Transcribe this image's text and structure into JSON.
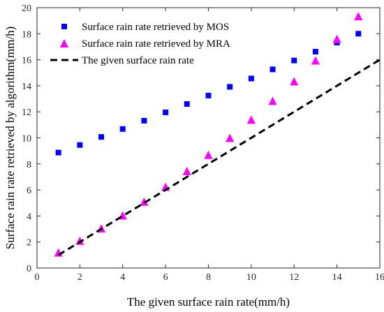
{
  "chart_data": {
    "type": "scatter",
    "xlabel": "The given surface rain rate(mm/h)",
    "ylabel": "Surface rain rate retrieved by algorithm(mm/h)",
    "xlim": [
      0,
      16
    ],
    "ylim": [
      0,
      20
    ],
    "xticks": [
      0,
      2,
      4,
      6,
      8,
      10,
      12,
      14,
      16
    ],
    "yticks": [
      0,
      2,
      4,
      6,
      8,
      10,
      12,
      14,
      16,
      18,
      20
    ],
    "grid": false,
    "legend_position": "top-left",
    "series": [
      {
        "name": "Surface rain rate retrieved by MOS",
        "marker": "square",
        "color": "#0000FF",
        "x": [
          1,
          2,
          3,
          4,
          5,
          6,
          7,
          8,
          9,
          10,
          11,
          12,
          13,
          14,
          15
        ],
        "y": [
          8.87,
          9.45,
          10.07,
          10.68,
          11.32,
          11.96,
          12.6,
          13.25,
          13.92,
          14.56,
          15.26,
          15.94,
          16.62,
          17.32,
          18.0
        ]
      },
      {
        "name": "Surface rain rate retrieved by MRA",
        "marker": "triangle",
        "color": "#FF00FF",
        "x": [
          1,
          2,
          3,
          4,
          5,
          6,
          7,
          8,
          9,
          10,
          11,
          12,
          13,
          14,
          15
        ],
        "y": [
          1.2,
          2.1,
          3.05,
          4.05,
          5.1,
          6.25,
          7.45,
          8.7,
          10.0,
          11.4,
          12.85,
          14.35,
          15.95,
          17.6,
          19.35
        ]
      },
      {
        "name": "The given surface rain rate",
        "line": "dashed",
        "color": "#000000",
        "x": [
          1,
          16
        ],
        "y": [
          1,
          16
        ]
      }
    ]
  }
}
